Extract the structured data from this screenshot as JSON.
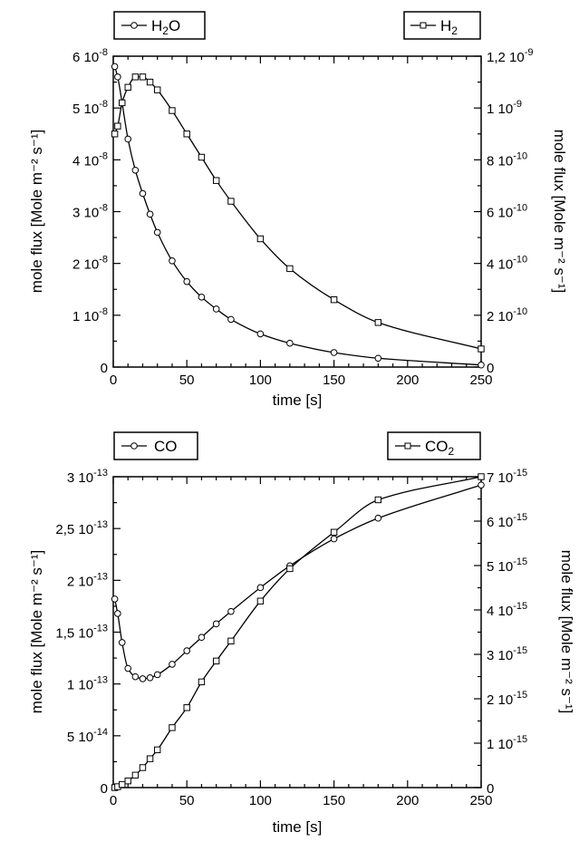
{
  "chart_data": [
    {
      "type": "scatter",
      "xlabel": "time [s]",
      "ylabel_left": "mole flux [Mole m⁻² s⁻¹]",
      "ylabel_right": "mole flux [Mole m⁻² s⁻¹]",
      "xlim": [
        0,
        250
      ],
      "ylim_left": [
        0,
        6e-08
      ],
      "ylim_right": [
        0,
        1.2e-09
      ],
      "x_ticks": [
        "0",
        "50",
        "100",
        "150",
        "200",
        "250"
      ],
      "y_ticks_left": [
        {
          "mant": "0",
          "exp": ""
        },
        {
          "mant": "1 10",
          "exp": "-8"
        },
        {
          "mant": "2 10",
          "exp": "-8"
        },
        {
          "mant": "3 10",
          "exp": "-8"
        },
        {
          "mant": "4 10",
          "exp": "-8"
        },
        {
          "mant": "5 10",
          "exp": "-8"
        },
        {
          "mant": "6 10",
          "exp": "-8"
        }
      ],
      "y_ticks_right": [
        {
          "mant": "0",
          "exp": ""
        },
        {
          "mant": "2 10",
          "exp": "-10"
        },
        {
          "mant": "4 10",
          "exp": "-10"
        },
        {
          "mant": "6 10",
          "exp": "-10"
        },
        {
          "mant": "8 10",
          "exp": "-10"
        },
        {
          "mant": "1 10",
          "exp": "-9"
        },
        {
          "mant": "1,2 10",
          "exp": "-9"
        }
      ],
      "legend_left": {
        "base": "H",
        "sub": "2",
        "tail": "O"
      },
      "legend_right": {
        "base": "H",
        "sub": "2",
        "tail": ""
      },
      "series": [
        {
          "name": "H2O",
          "axis": "left",
          "marker": "circle",
          "x": [
            1,
            3,
            6,
            10,
            15,
            20,
            25,
            30,
            40,
            50,
            60,
            70,
            80,
            100,
            120,
            150,
            180,
            250
          ],
          "y": [
            5.8e-08,
            5.6e-08,
            5.1e-08,
            4.4e-08,
            3.8e-08,
            3.35e-08,
            2.95e-08,
            2.6e-08,
            2.05e-08,
            1.65e-08,
            1.35e-08,
            1.12e-08,
            9.2e-09,
            6.4e-09,
            4.6e-09,
            2.8e-09,
            1.7e-09,
            4e-10
          ]
        },
        {
          "name": "H2",
          "axis": "right",
          "marker": "square",
          "x": [
            1,
            3,
            6,
            10,
            15,
            20,
            25,
            30,
            40,
            50,
            60,
            70,
            80,
            100,
            120,
            150,
            180,
            250
          ],
          "y": [
            9e-10,
            9.3e-10,
            1.02e-09,
            1.08e-09,
            1.12e-09,
            1.12e-09,
            1.1e-09,
            1.07e-09,
            9.9e-10,
            9e-10,
            8.1e-10,
            7.2e-10,
            6.4e-10,
            4.95e-10,
            3.8e-10,
            2.6e-10,
            1.72e-10,
            7e-11
          ]
        }
      ]
    },
    {
      "type": "scatter",
      "xlabel": "time [s]",
      "ylabel_left": "mole flux [Mole m⁻² s⁻¹]",
      "ylabel_right": "mole flux [Mole m⁻² s⁻¹]",
      "xlim": [
        0,
        250
      ],
      "ylim_left": [
        0,
        3e-13
      ],
      "ylim_right": [
        0,
        7e-15
      ],
      "x_ticks": [
        "0",
        "50",
        "100",
        "150",
        "200",
        "250"
      ],
      "y_ticks_left": [
        {
          "mant": "0",
          "exp": ""
        },
        {
          "mant": "5 10",
          "exp": "-14"
        },
        {
          "mant": "1 10",
          "exp": "-13"
        },
        {
          "mant": "1,5 10",
          "exp": "-13"
        },
        {
          "mant": "2 10",
          "exp": "-13"
        },
        {
          "mant": "2,5 10",
          "exp": "-13"
        },
        {
          "mant": "3 10",
          "exp": "-13"
        }
      ],
      "y_ticks_right": [
        {
          "mant": "0",
          "exp": ""
        },
        {
          "mant": "1 10",
          "exp": "-15"
        },
        {
          "mant": "2 10",
          "exp": "-15"
        },
        {
          "mant": "3 10",
          "exp": "-15"
        },
        {
          "mant": "4 10",
          "exp": "-15"
        },
        {
          "mant": "5 10",
          "exp": "-15"
        },
        {
          "mant": "6 10",
          "exp": "-15"
        },
        {
          "mant": "7 10",
          "exp": "-15"
        }
      ],
      "legend_left": {
        "base": "CO",
        "sub": "",
        "tail": ""
      },
      "legend_right": {
        "base": "CO",
        "sub": "2",
        "tail": ""
      },
      "series": [
        {
          "name": "CO",
          "axis": "left",
          "marker": "circle",
          "x": [
            1,
            3,
            6,
            10,
            15,
            20,
            25,
            30,
            40,
            50,
            60,
            70,
            80,
            100,
            120,
            150,
            180,
            250
          ],
          "y": [
            1.82e-13,
            1.68e-13,
            1.4e-13,
            1.15e-13,
            1.07e-13,
            1.05e-13,
            1.06e-13,
            1.09e-13,
            1.19e-13,
            1.32e-13,
            1.45e-13,
            1.58e-13,
            1.7e-13,
            1.93e-13,
            2.14e-13,
            2.4e-13,
            2.6e-13,
            2.92e-13
          ]
        },
        {
          "name": "CO2",
          "axis": "right",
          "marker": "square",
          "x": [
            1,
            3,
            6,
            10,
            15,
            20,
            25,
            30,
            40,
            50,
            60,
            70,
            80,
            100,
            120,
            150,
            180,
            250
          ],
          "y": [
            0.0,
            2e-17,
            7e-17,
            1.5e-16,
            2.8e-16,
            4.5e-16,
            6.5e-16,
            8.5e-16,
            1.35e-15,
            1.8e-15,
            2.38e-15,
            2.85e-15,
            3.3e-15,
            4.2e-15,
            4.93e-15,
            5.75e-15,
            6.48e-15,
            7e-15
          ]
        }
      ]
    }
  ]
}
